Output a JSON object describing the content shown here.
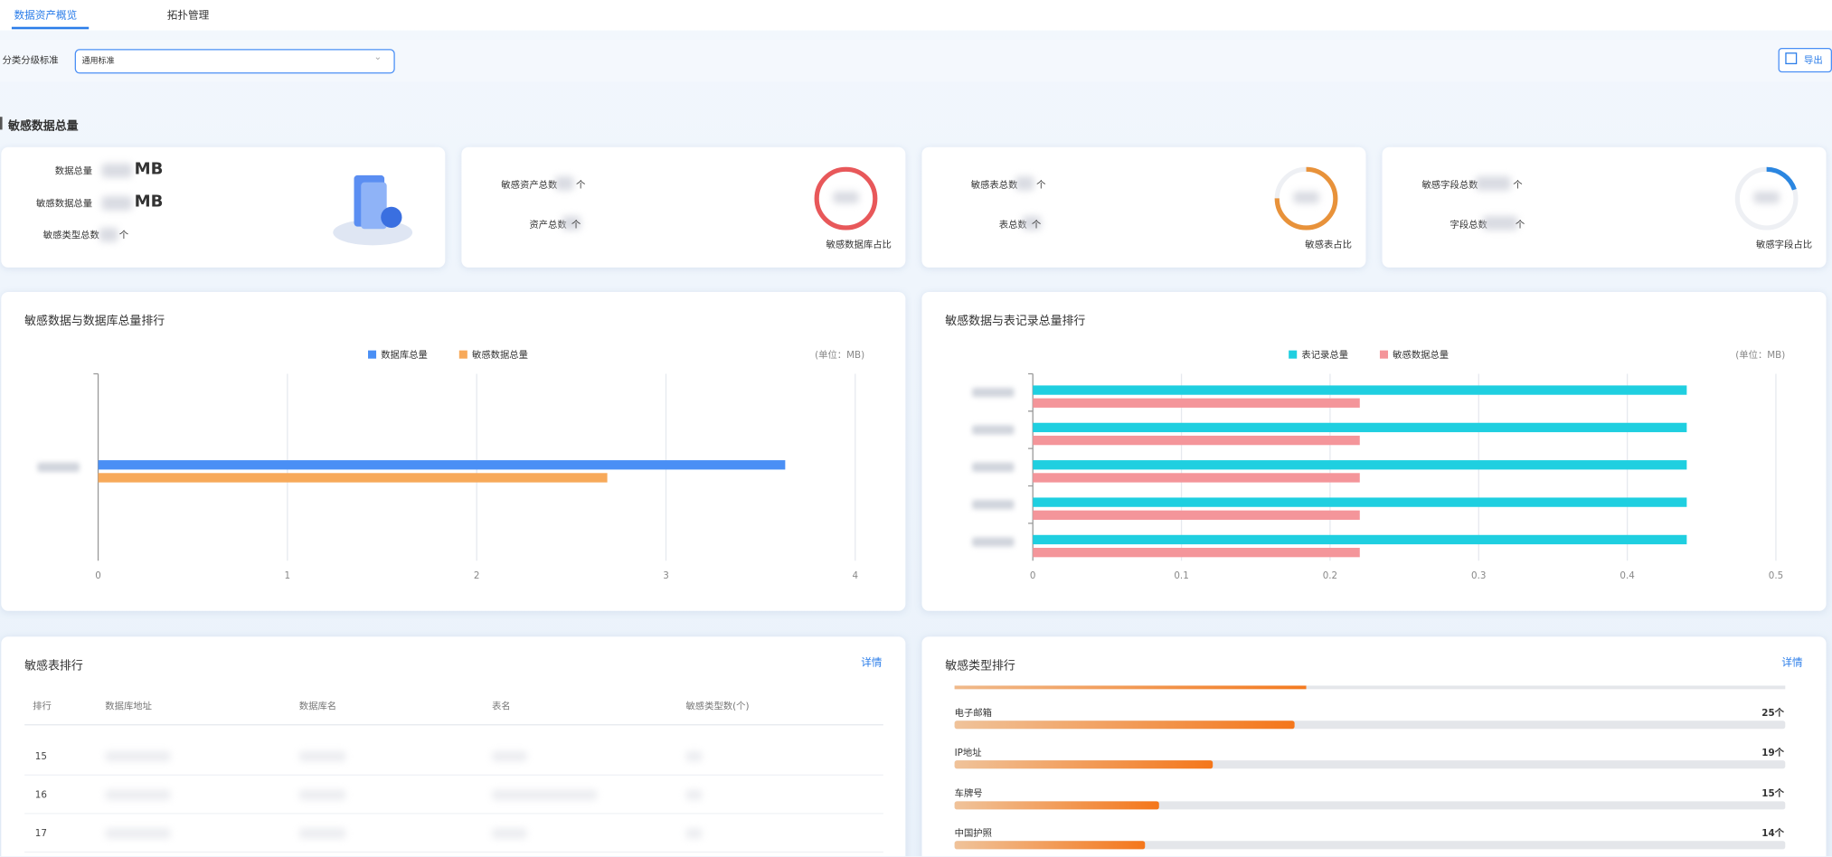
{
  "tabs": [
    "数据资产概览",
    "拓扑管理"
  ],
  "filter": {
    "label": "分类分级标准",
    "value": "通用标准",
    "export": "导出"
  },
  "section_title": "敏感数据总量",
  "cards": [
    {
      "metrics": [
        {
          "label": "数据总量",
          "unit": "MB"
        },
        {
          "label": "敏感数据总量",
          "unit": "MB"
        },
        {
          "label": "敏感类型总数",
          "unit": "个"
        }
      ]
    },
    {
      "metrics": [
        {
          "label": "敏感资产总数",
          "unit": "个"
        },
        {
          "label": "资产总数",
          "unit": "个"
        }
      ],
      "ring_label": "敏感数据库占比",
      "ring_color": "#e8585a"
    },
    {
      "metrics": [
        {
          "label": "敏感表总数",
          "unit": "个"
        },
        {
          "label": "表总数",
          "unit": "个"
        }
      ],
      "ring_label": "敏感表占比",
      "ring_color": "#e8923a"
    },
    {
      "metrics": [
        {
          "label": "敏感字段总数",
          "unit": "个"
        },
        {
          "label": "字段总数",
          "unit": "个"
        }
      ],
      "ring_label": "敏感字段占比",
      "ring_color": "#2b86e0"
    }
  ],
  "charts": [
    {
      "type": "bar",
      "title": "敏感数据与数据库总量排行",
      "unit": "(单位：MB)",
      "categories": [
        null
      ],
      "series": [
        {
          "name": "数据库总量",
          "color": "#4a8ff5",
          "values": [
            3.63
          ]
        },
        {
          "name": "敏感数据总量",
          "color": "#f7a95a",
          "values": [
            2.69
          ]
        }
      ],
      "xlim": [
        0,
        4
      ],
      "xticks": [
        0,
        1,
        2,
        3,
        4
      ],
      "grid": true
    },
    {
      "type": "bar",
      "title": "敏感数据与表记录总量排行",
      "unit": "(单位：MB)",
      "categories": [
        null,
        null,
        null,
        null,
        null
      ],
      "series": [
        {
          "name": "表记录总量",
          "color": "#1fcfe0",
          "values": [
            0.44,
            0.44,
            0.44,
            0.44,
            0.44
          ]
        },
        {
          "name": "敏感数据总量",
          "color": "#f4959a",
          "values": [
            0.22,
            0.22,
            0.22,
            0.22,
            0.22
          ]
        }
      ],
      "xlim": [
        0,
        0.5
      ],
      "xticks": [
        0,
        0.1,
        0.2,
        0.3,
        0.4,
        0.5
      ],
      "grid": true
    }
  ],
  "sensitive_tables": {
    "title": "敏感表排行",
    "detail": "详情",
    "columns": [
      "排行",
      "数据库地址",
      "数据库名",
      "表名",
      "敏感类型数(个)"
    ],
    "rows": [
      [
        "15"
      ],
      [
        "16"
      ],
      [
        "17"
      ]
    ]
  },
  "type_ranking": {
    "title": "敏感类型排行",
    "detail": "详情",
    "items": [
      {
        "name": "电子邮箱",
        "value": 25,
        "value_label": "25个"
      },
      {
        "name": "IP地址",
        "value": 19,
        "value_label": "19个"
      },
      {
        "name": "车牌号",
        "value": 15,
        "value_label": "15个"
      },
      {
        "name": "中国护照",
        "value": 14,
        "value_label": "14个"
      }
    ]
  }
}
